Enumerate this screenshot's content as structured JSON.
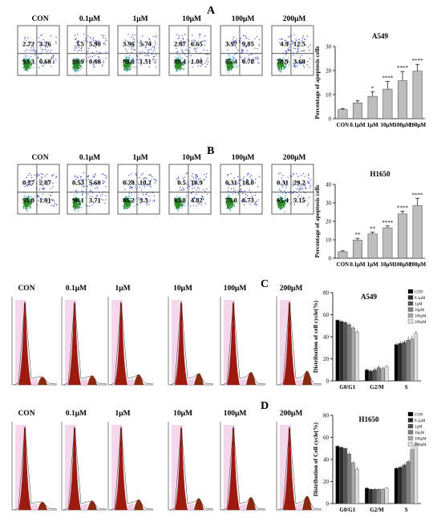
{
  "panel_labels": [
    "A",
    "B",
    "C",
    "D"
  ],
  "flow_conditions": [
    "CON",
    "0.1μM",
    "1μM",
    "10μM",
    "100μM",
    "200μM"
  ],
  "flow_quadrants": {
    "A": [
      {
        "ul": "2.72",
        "ur": "3.26",
        "ll": "93.3",
        "lr": "0.68"
      },
      {
        "ul": "3.5",
        "ur": "5.98",
        "ll": "89.9",
        "lr": "0.68"
      },
      {
        "ul": "3.96",
        "ur": "5.74",
        "ll": "88.8",
        "lr": "1.51"
      },
      {
        "ul": "2.87",
        "ur": "6.65",
        "ll": "89.4",
        "lr": "1.08"
      },
      {
        "ul": "3.97",
        "ur": "9.85",
        "ll": "85.4",
        "lr": "0.78"
      },
      {
        "ul": "4.9",
        "ur": "12.5",
        "ll": "78.9",
        "lr": "3.68"
      }
    ],
    "B": [
      {
        "ul": "0.27",
        "ur": "2.07",
        "ll": "95.8",
        "lr": "1.91"
      },
      {
        "ul": "0.53",
        "ur": "5.68",
        "ll": "90.1",
        "lr": "3.71"
      },
      {
        "ul": "0.28",
        "ur": "10.2",
        "ll": "86.2",
        "lr": "3.3"
      },
      {
        "ul": "0.5",
        "ur": "10.9",
        "ll": "83.8",
        "lr": "4.82"
      },
      {
        "ul": "0.31",
        "ur": "18.0",
        "ll": "75.0",
        "lr": "6.73"
      },
      {
        "ul": "0.31",
        "ur": "29.2",
        "ll": "65.4",
        "lr": "5.15"
      }
    ]
  },
  "colors": {
    "g0g1_peak": "#9c1a10",
    "s_phase": "#f2c9e6",
    "g2m_peak": "#8a2a12",
    "scatter_dense": "#2a8a2a",
    "scatter_mid": "#3aa0d8",
    "scatter_sparse": "#3a4ad0",
    "bar_fill": "#bdbdbd",
    "cycle_series": [
      "#000000",
      "#2b2b2b",
      "#555555",
      "#7f7f7f",
      "#aaaaaa",
      "#dcdcdc"
    ]
  },
  "chart_data": [
    {
      "type": "bar",
      "title": "A549",
      "ylabel": "Percentage of apoptosis cells",
      "categories": [
        "CON",
        "0.1μM",
        "1μM",
        "10μM",
        "100μM",
        "200μM"
      ],
      "values": [
        3.8,
        6.6,
        9.3,
        12.3,
        15.8,
        19.8
      ],
      "errors": [
        0.4,
        0.9,
        1.8,
        3.2,
        3.8,
        2.8
      ],
      "significance": [
        "",
        "",
        "*",
        "****",
        "****",
        "****"
      ],
      "ylim": [
        0,
        30
      ],
      "yticks": [
        0,
        10,
        20,
        30
      ]
    },
    {
      "type": "bar",
      "title": "H1650",
      "ylabel": "Percentage of apoptosis cells",
      "categories": [
        "CON",
        "0.1μM",
        "1μM",
        "10μM",
        "100μM",
        "200μM"
      ],
      "values": [
        3.5,
        9.8,
        13.2,
        16.5,
        24.0,
        28.5
      ],
      "errors": [
        0.5,
        1.0,
        1.0,
        1.0,
        1.5,
        4.0
      ],
      "significance": [
        "",
        "**",
        "**",
        "****",
        "****",
        "****"
      ],
      "ylim": [
        0,
        40
      ],
      "yticks": [
        0,
        10,
        20,
        30,
        40
      ]
    },
    {
      "type": "bar",
      "title": "A549",
      "ylabel": "Distribution of cell cycle(%)",
      "categories": [
        "G0/G1",
        "G2/M",
        "S"
      ],
      "series": [
        {
          "name": "CON",
          "values": [
            55,
            10,
            33
          ],
          "errors": [
            1,
            1.5,
            1.5
          ]
        },
        {
          "name": "0.1μM",
          "values": [
            54,
            9,
            34
          ],
          "errors": [
            1,
            1.5,
            2
          ]
        },
        {
          "name": "1μM",
          "values": [
            53,
            10,
            35
          ],
          "errors": [
            1,
            2,
            2
          ]
        },
        {
          "name": "10μM",
          "values": [
            51,
            12,
            37
          ],
          "errors": [
            1.5,
            2,
            3
          ]
        },
        {
          "name": "100μM",
          "values": [
            48,
            11,
            38
          ],
          "errors": [
            1.5,
            2,
            3
          ]
        },
        {
          "name": "200μM",
          "values": [
            44,
            13,
            43
          ],
          "errors": [
            2,
            1.5,
            2.5
          ]
        }
      ],
      "ylim": [
        0,
        80
      ],
      "yticks": [
        0,
        20,
        40,
        60,
        80
      ]
    },
    {
      "type": "bar",
      "title": "H1650",
      "ylabel": "Distribution of Cell cycle(%)",
      "categories": [
        "G0/G1",
        "G2/M",
        "S"
      ],
      "series": [
        {
          "name": "CON",
          "values": [
            52,
            14,
            32
          ],
          "errors": [
            1,
            1,
            1
          ]
        },
        {
          "name": "0.1μM",
          "values": [
            51,
            13,
            33
          ],
          "errors": [
            1,
            1,
            1
          ]
        },
        {
          "name": "1μM",
          "values": [
            50,
            13,
            35
          ],
          "errors": [
            1,
            1,
            1.5
          ]
        },
        {
          "name": "10μM",
          "values": [
            45,
            13,
            38
          ],
          "errors": [
            1.5,
            1,
            1.5
          ]
        },
        {
          "name": "100μM",
          "values": [
            37,
            13,
            49
          ],
          "errors": [
            1.5,
            1,
            2
          ]
        },
        {
          "name": "200μM",
          "values": [
            31,
            14,
            54
          ],
          "errors": [
            2,
            1,
            2.5
          ]
        }
      ],
      "ylim": [
        0,
        80
      ],
      "yticks": [
        0,
        20,
        40,
        60,
        80
      ]
    }
  ]
}
